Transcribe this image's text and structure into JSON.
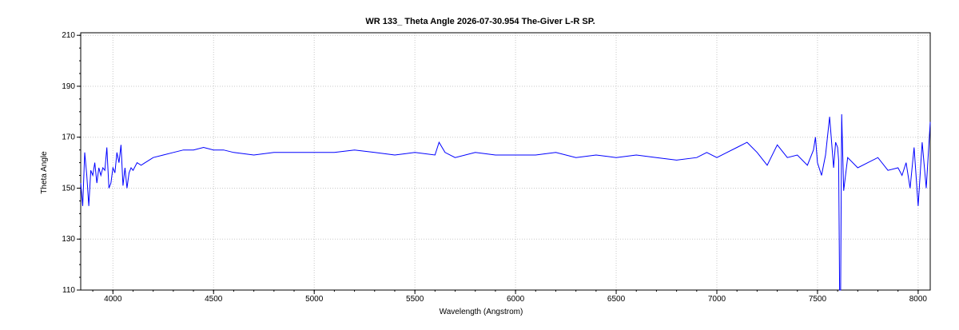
{
  "chart_data": {
    "type": "line",
    "title": "WR 133_ Theta Angle  2026-07-30.954  The-Giver L-R SP.",
    "xlabel": "Wavelength (Angstrom)",
    "ylabel": "Theta  Angle",
    "xlim": [
      3840,
      8060
    ],
    "ylim": [
      110,
      211
    ],
    "x_ticks": [
      4000,
      4500,
      5000,
      5500,
      6000,
      6500,
      7000,
      7500,
      8000
    ],
    "y_ticks": [
      110,
      130,
      150,
      170,
      190,
      210
    ],
    "grid": true,
    "line_color": "#0000ff",
    "series": [
      {
        "x": [
          3840,
          3850,
          3860,
          3870,
          3880,
          3890,
          3900,
          3910,
          3920,
          3930,
          3940,
          3950,
          3960,
          3970,
          3980,
          3990,
          4000,
          4010,
          4020,
          4030,
          4040,
          4050,
          4060,
          4070,
          4080,
          4090,
          4100,
          4120,
          4140,
          4160,
          4180,
          4200,
          4250,
          4300,
          4350,
          4400,
          4450,
          4500,
          4550,
          4600,
          4700,
          4800,
          4900,
          5000,
          5100,
          5200,
          5300,
          5400,
          5500,
          5600,
          5620,
          5650,
          5700,
          5800,
          5900,
          6000,
          6100,
          6200,
          6300,
          6400,
          6500,
          6600,
          6700,
          6800,
          6900,
          6950,
          7000,
          7050,
          7100,
          7150,
          7200,
          7250,
          7300,
          7350,
          7400,
          7450,
          7480,
          7490,
          7500,
          7520,
          7540,
          7560,
          7580,
          7590,
          7600,
          7605,
          7610,
          7615,
          7620,
          7630,
          7650,
          7700,
          7750,
          7800,
          7850,
          7900,
          7920,
          7940,
          7960,
          7980,
          8000,
          8020,
          8040,
          8060
        ],
        "y": [
          152,
          143,
          164,
          155,
          143,
          157,
          155,
          160,
          152,
          158,
          155,
          158,
          157,
          166,
          150,
          152,
          158,
          156,
          164,
          160,
          167,
          151,
          158,
          150,
          156,
          158,
          157,
          160,
          159,
          160,
          161,
          162,
          163,
          164,
          165,
          165,
          166,
          165,
          165,
          164,
          163,
          164,
          164,
          164,
          164,
          165,
          164,
          163,
          164,
          163,
          168,
          164,
          162,
          164,
          163,
          163,
          163,
          164,
          162,
          163,
          162,
          163,
          162,
          161,
          162,
          164,
          162,
          164,
          166,
          168,
          164,
          159,
          167,
          162,
          163,
          159,
          165,
          170,
          160,
          155,
          163,
          178,
          158,
          168,
          166,
          161,
          110,
          110,
          179,
          149,
          162,
          158,
          160,
          162,
          157,
          158,
          155,
          160,
          150,
          166,
          143,
          168,
          150,
          176
        ]
      }
    ]
  }
}
